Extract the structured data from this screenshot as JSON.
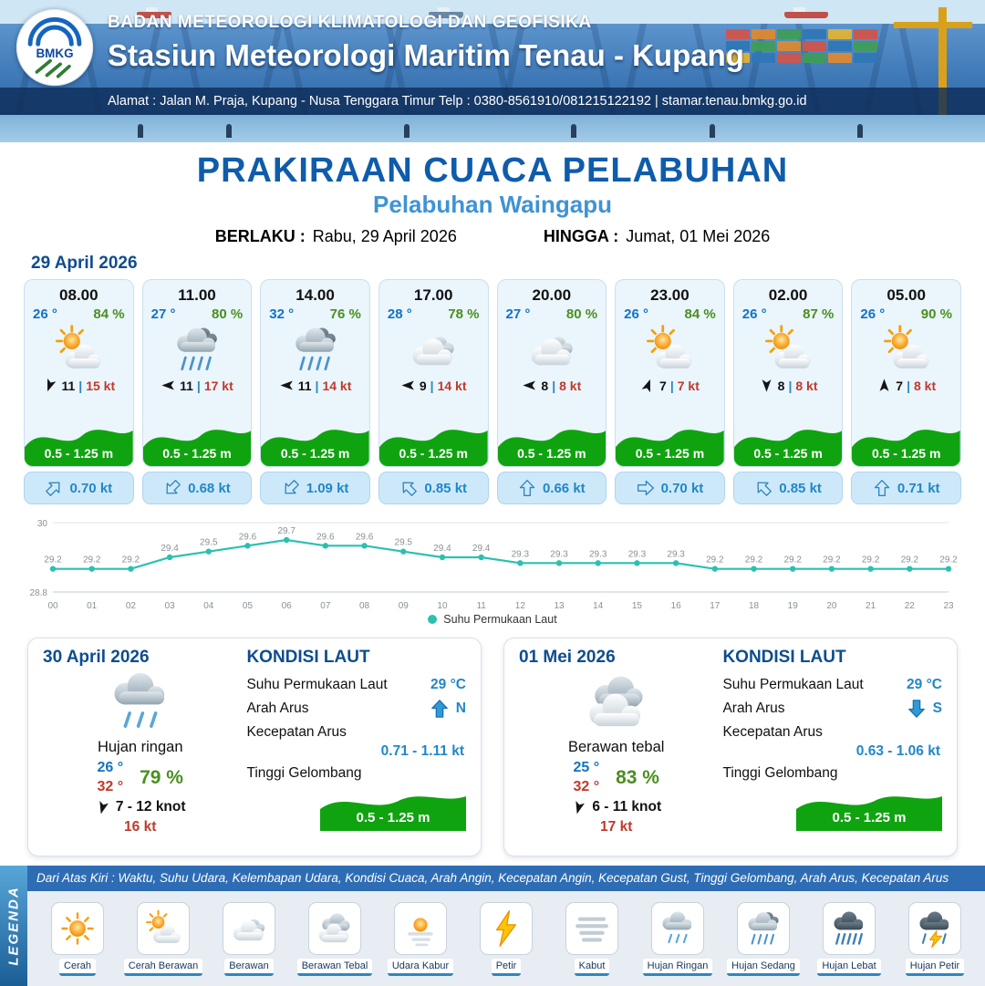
{
  "header": {
    "agency": "BADAN METEOROLOGI KLIMATOLOGI DAN GEOFISIKA",
    "station": "Stasiun Meteorologi Maritim Tenau - Kupang",
    "address": "Alamat : Jalan M. Praja, Kupang - Nusa Tenggara Timur Telp : 0380-8561910/081215122192  | stamar.tenau.bmkg.go.id",
    "logo_text": "BMKG"
  },
  "title": {
    "main": "PRAKIRAAN CUACA PELABUHAN",
    "sub": "Pelabuhan Waingapu",
    "valid_from_label": "BERLAKU :",
    "valid_from": "Rabu, 29 April 2026",
    "valid_to_label": "HINGGA :",
    "valid_to": "Jumat, 01 Mei 2026"
  },
  "forecast": {
    "date": "29 April 2026",
    "wind_sep": "|",
    "cards": [
      {
        "time": "08.00",
        "temp": "26 °",
        "humidity": "84 %",
        "icon": "#i-cerah-berawan",
        "wind": "11",
        "gust": "15 kt",
        "wind_rot": 200,
        "wave": "0.5 - 1.25 m",
        "current": "0.70 kt",
        "current_rot": 45
      },
      {
        "time": "11.00",
        "temp": "27 °",
        "humidity": "80 %",
        "icon": "#i-hujan-sedang",
        "wind": "11",
        "gust": "17 kt",
        "wind_rot": 270,
        "wave": "0.5 - 1.25 m",
        "current": "0.68 kt",
        "current_rot": 225
      },
      {
        "time": "14.00",
        "temp": "32 °",
        "humidity": "76 %",
        "icon": "#i-hujan-sedang",
        "wind": "11",
        "gust": "14 kt",
        "wind_rot": 270,
        "wave": "0.5 - 1.25 m",
        "current": "1.09 kt",
        "current_rot": 225
      },
      {
        "time": "17.00",
        "temp": "28 °",
        "humidity": "78 %",
        "icon": "#i-berawan",
        "wind": "9",
        "gust": "14 kt",
        "wind_rot": 270,
        "wave": "0.5 - 1.25 m",
        "current": "0.85 kt",
        "current_rot": 315
      },
      {
        "time": "20.00",
        "temp": "27 °",
        "humidity": "80 %",
        "icon": "#i-berawan",
        "wind": "8",
        "gust": "8 kt",
        "wind_rot": 270,
        "wave": "0.5 - 1.25 m",
        "current": "0.66 kt",
        "current_rot": 0
      },
      {
        "time": "23.00",
        "temp": "26 °",
        "humidity": "84 %",
        "icon": "#i-cerah-berawan",
        "wind": "7",
        "gust": "7 kt",
        "wind_rot": 20,
        "wave": "0.5 - 1.25 m",
        "current": "0.70 kt",
        "current_rot": 90
      },
      {
        "time": "02.00",
        "temp": "26 °",
        "humidity": "87 %",
        "icon": "#i-cerah-berawan",
        "wind": "8",
        "gust": "8 kt",
        "wind_rot": 180,
        "wave": "0.5 - 1.25 m",
        "current": "0.85 kt",
        "current_rot": 315
      },
      {
        "time": "05.00",
        "temp": "26 °",
        "humidity": "90 %",
        "icon": "#i-cerah-berawan",
        "wind": "7",
        "gust": "8 kt",
        "wind_rot": 0,
        "wave": "0.5 - 1.25 m",
        "current": "0.71 kt",
        "current_rot": 0
      }
    ]
  },
  "chart_data": {
    "type": "line",
    "series_name": "Suhu Permukaan Laut",
    "x": [
      "00",
      "01",
      "02",
      "03",
      "04",
      "05",
      "06",
      "07",
      "08",
      "09",
      "10",
      "11",
      "12",
      "13",
      "14",
      "15",
      "16",
      "17",
      "18",
      "19",
      "20",
      "21",
      "22",
      "23"
    ],
    "values": [
      29.2,
      29.2,
      29.2,
      29.4,
      29.5,
      29.6,
      29.7,
      29.6,
      29.6,
      29.5,
      29.4,
      29.4,
      29.3,
      29.3,
      29.3,
      29.3,
      29.3,
      29.2,
      29.2,
      29.2,
      29.2,
      29.2,
      29.2,
      29.2
    ],
    "ylim": [
      28.8,
      30
    ],
    "color": "#2cc0b0",
    "grid": true,
    "legend_position": "bottom"
  },
  "day_cards": [
    {
      "date": "30 April 2026",
      "icon": "#i-hujan-ringan",
      "condition": "Hujan ringan",
      "temp_min": "26 °",
      "temp_max": "32 °",
      "humidity": "79 %",
      "wind_range": "7 - 12 knot",
      "gust": "16 kt",
      "wind_rot": 195,
      "sea": {
        "title": "KONDISI LAUT",
        "sst_label": "Suhu Permukaan Laut",
        "sst": "29 °C",
        "dir_label": "Arah Arus",
        "dir": "N",
        "dir_rot": 0,
        "speed_label": "Kecepatan Arus",
        "speed": "0.71 - 1.11 kt",
        "wave_label": "Tinggi Gelombang",
        "wave": "0.5 - 1.25 m"
      }
    },
    {
      "date": "01 Mei 2026",
      "icon": "#i-berawan-tebal",
      "condition": "Berawan tebal",
      "temp_min": "25 °",
      "temp_max": "32 °",
      "humidity": "83 %",
      "wind_range": "6 - 11 knot",
      "gust": "17 kt",
      "wind_rot": 195,
      "sea": {
        "title": "KONDISI LAUT",
        "sst_label": "Suhu Permukaan Laut",
        "sst": "29 °C",
        "dir_label": "Arah Arus",
        "dir": "S",
        "dir_rot": 180,
        "speed_label": "Kecepatan Arus",
        "speed": "0.63 - 1.06 kt",
        "wave_label": "Tinggi Gelombang",
        "wave": "0.5 - 1.25 m"
      }
    }
  ],
  "legend": {
    "title": "LEGENDA",
    "info_line": "Dari Atas Kiri : Waktu, Suhu Udara, Kelembapan Udara, Kondisi Cuaca, Arah Angin, Kecepatan Angin, Kecepatan Gust, Tinggi Gelombang, Arah Arus, Kecepatan Arus",
    "items": [
      {
        "label": "Cerah",
        "icon": "#i-cerah"
      },
      {
        "label": "Cerah Berawan",
        "icon": "#i-cerah-berawan"
      },
      {
        "label": "Berawan",
        "icon": "#i-berawan"
      },
      {
        "label": "Berawan Tebal",
        "icon": "#i-berawan-tebal"
      },
      {
        "label": "Udara Kabur",
        "icon": "#i-udara-kabur"
      },
      {
        "label": "Petir",
        "icon": "#i-petir"
      },
      {
        "label": "Kabut",
        "icon": "#i-kabut"
      },
      {
        "label": "Hujan Ringan",
        "icon": "#i-hujan-ringan"
      },
      {
        "label": "Hujan Sedang",
        "icon": "#i-hujan-sedang"
      },
      {
        "label": "Hujan Lebat",
        "icon": "#i-hujan-lebat"
      },
      {
        "label": "Hujan Petir",
        "icon": "#i-hujan-petir"
      }
    ]
  },
  "colors": {
    "accent_blue": "#1273c4",
    "accent_green": "#4a8f1f",
    "accent_red": "#c0392b",
    "wave_green": "#10a310",
    "current_blue": "#2187c8"
  }
}
